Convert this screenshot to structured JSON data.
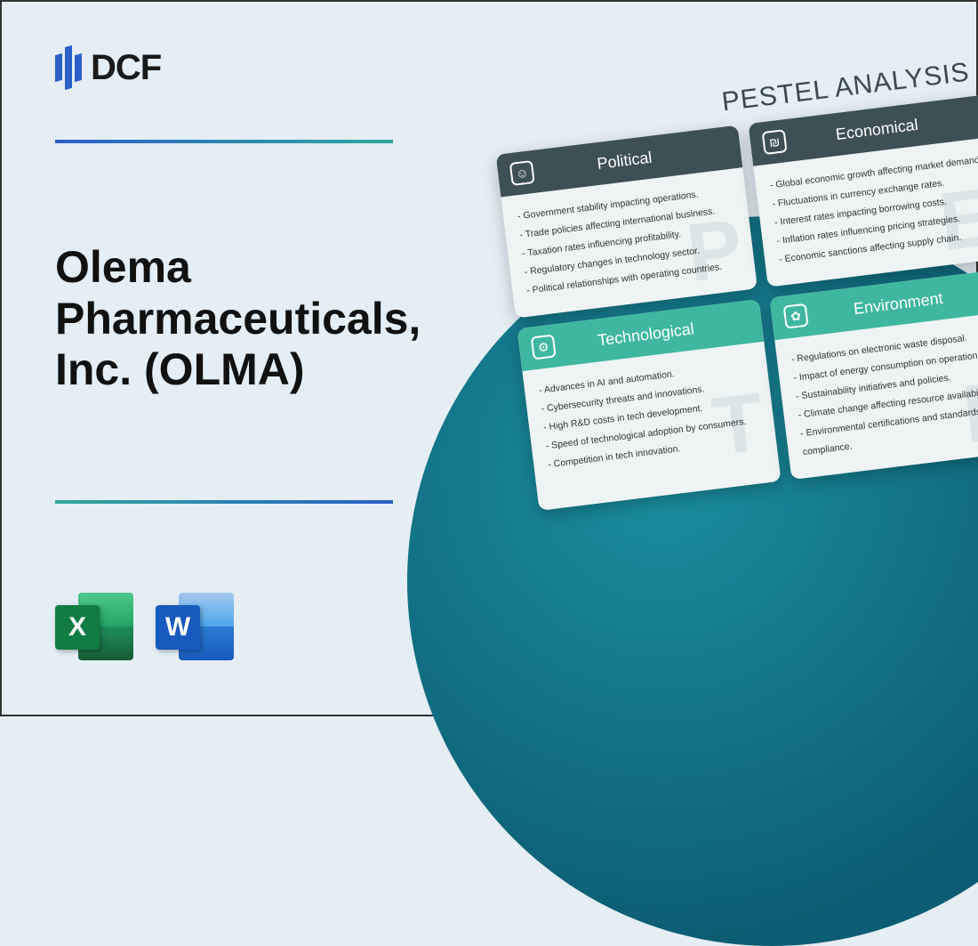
{
  "logo": {
    "text": "DCF"
  },
  "title": "Olema Pharmaceuticals, Inc. (OLMA)",
  "icons": {
    "excel": "X",
    "word": "W"
  },
  "pestel": {
    "heading": "PESTEL ANALYSIS",
    "cards": [
      {
        "title": "Political",
        "headerStyle": "dark",
        "watermark": "P",
        "iconGlyph": "☺",
        "items": [
          "Government stability impacting operations.",
          "Trade policies affecting international business.",
          "Taxation rates influencing profitability.",
          "Regulatory changes in technology sector.",
          "Political relationships with operating countries."
        ]
      },
      {
        "title": "Economical",
        "headerStyle": "dark",
        "watermark": "E",
        "iconGlyph": "₪",
        "items": [
          "Global economic growth affecting market demand.",
          "Fluctuations in currency exchange rates.",
          "Interest rates impacting borrowing costs.",
          "Inflation rates influencing pricing strategies.",
          "Economic sanctions affecting supply chain."
        ]
      },
      {
        "title": "Technological",
        "headerStyle": "teal",
        "watermark": "T",
        "iconGlyph": "⚙",
        "items": [
          "Advances in AI and automation.",
          "Cybersecurity threats and innovations.",
          "High R&D costs in tech development.",
          "Speed of technological adoption by consumers.",
          "Competition in tech innovation."
        ]
      },
      {
        "title": "Environment",
        "headerStyle": "teal",
        "watermark": "E",
        "iconGlyph": "✿",
        "items": [
          "Regulations on electronic waste disposal.",
          "Impact of energy consumption on operations.",
          "Sustainability initiatives and policies.",
          "Climate change affecting resource availability.",
          "Environmental certifications and standards compliance."
        ]
      }
    ]
  },
  "colors": {
    "background": "#e4eef4",
    "logoBlue": "#2b5fc7",
    "dividerGradStart": "#2b5fc7",
    "dividerGradEnd": "#2fa89b",
    "circleGradStart": "#1a8fa0",
    "circleGradEnd": "#0c5d73",
    "cardHeaderDark": "#3d5056",
    "cardHeaderTeal": "#3fb7a0"
  }
}
